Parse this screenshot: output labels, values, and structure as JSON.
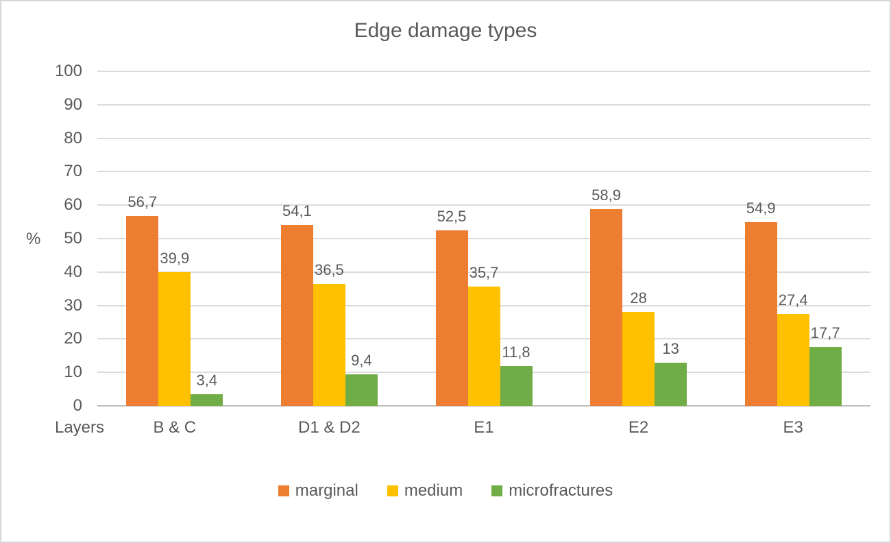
{
  "chart_data": {
    "type": "bar",
    "title": "Edge damage types",
    "xlabel": "Layers",
    "ylabel": "%",
    "ylim": [
      0,
      100
    ],
    "ytick_step": 10,
    "grid": true,
    "legend_position": "bottom",
    "categories": [
      "B & C",
      "D1 & D2",
      "E1",
      "E2",
      "E3"
    ],
    "series": [
      {
        "name": "marginal",
        "color": "#ED7D31",
        "values": [
          56.7,
          54.1,
          52.5,
          58.9,
          54.9
        ],
        "labels": [
          "56,7",
          "54,1",
          "52,5",
          "58,9",
          "54,9"
        ]
      },
      {
        "name": "medium",
        "color": "#FFC000",
        "values": [
          39.9,
          36.5,
          35.7,
          28,
          27.4
        ],
        "labels": [
          "39,9",
          "36,5",
          "35,7",
          "28",
          "27,4"
        ]
      },
      {
        "name": "microfractures",
        "color": "#70AD47",
        "values": [
          3.4,
          9.4,
          11.8,
          13,
          17.7
        ],
        "labels": [
          "3,4",
          "9,4",
          "11,8",
          "13",
          "17,7"
        ]
      }
    ]
  },
  "colors": {
    "text": "#595959",
    "gridline": "#DBDBDB",
    "axis_line": "#BFBFBF",
    "border": "#D6D6D6",
    "background": "#FFFFFF"
  }
}
